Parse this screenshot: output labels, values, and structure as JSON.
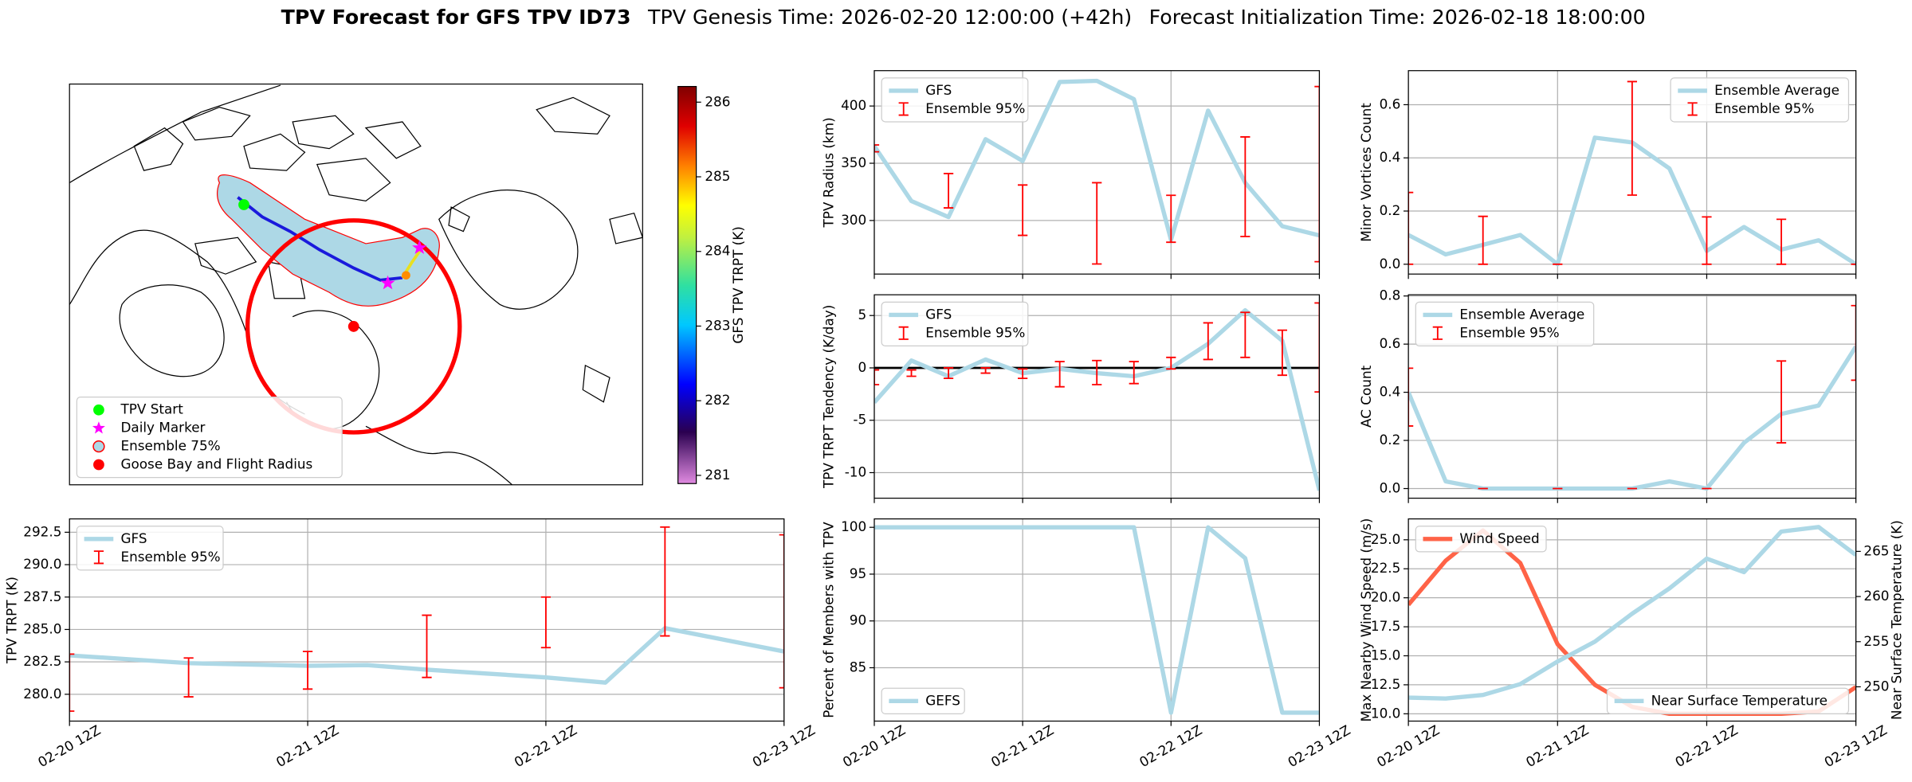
{
  "title": {
    "main": "TPV Forecast for GFS TPV ID73",
    "genesis": "TPV Genesis Time: 2026-02-20 12:00:00 (+42h)",
    "init": "Forecast Initialization Time: 2026-02-18 18:00:00"
  },
  "chart_data": [
    {
      "type": "map",
      "legend": "lower left",
      "series": [
        {
          "name": "TPV Start",
          "color": "#00ff00",
          "marker": "o"
        },
        {
          "name": "Daily Marker",
          "color": "#ff00ff",
          "marker": "*"
        },
        {
          "name": "Ensemble 75%",
          "color": "#add8e6",
          "edgecolor": "#ff0000",
          "marker": "o"
        },
        {
          "name": "Goose Bay and Flight Radius",
          "color": "#ff0000",
          "marker": "o"
        }
      ],
      "colorbar": {
        "label": "GFS TPV TRPT (K)",
        "lim": [
          280.89,
          286.21
        ],
        "ticks": [
          281,
          282,
          283,
          284,
          285,
          286
        ]
      }
    },
    {
      "type": "line",
      "ylabel": "TPV Radius (km)",
      "ylim": [
        253.2,
        430.9
      ],
      "yticks": [
        300,
        350,
        400
      ],
      "grid": true,
      "legend": "upper left",
      "series": [
        {
          "name": "GFS",
          "color": "#add8e6",
          "values": [
            365,
            317,
            303,
            371,
            352,
            421,
            422,
            406,
            283,
            396,
            333,
            295,
            287
          ]
        }
      ],
      "error_bars": {
        "name": "Ensemble 95%",
        "color": "#ff0000",
        "low": [
          360,
          null,
          311,
          null,
          287,
          null,
          262,
          null,
          281,
          null,
          286,
          null,
          264
        ],
        "high": [
          366,
          null,
          341,
          null,
          331,
          null,
          333,
          null,
          322,
          null,
          373,
          null,
          417
        ]
      }
    },
    {
      "type": "line",
      "ylabel": "Minor Vortices Count",
      "ylim": [
        -0.037,
        0.728
      ],
      "yticks": [
        {
          "value": 0,
          "label": "0.0"
        },
        0.2,
        0.4,
        0.6
      ],
      "grid": true,
      "legend": "upper right",
      "series": [
        {
          "name": "Ensemble Average",
          "color": "#add8e6",
          "values": [
            0.11,
            0.037,
            0.073,
            0.11,
            0,
            0.476,
            0.458,
            0.36,
            0.05,
            0.14,
            0.055,
            0.09,
            0
          ]
        }
      ],
      "error_bars": {
        "name": "Ensemble 95%",
        "color": "#ff0000",
        "low": [
          0,
          null,
          0,
          null,
          0,
          null,
          0.26,
          null,
          0,
          null,
          0,
          null,
          0
        ],
        "high": [
          0.27,
          null,
          0.18,
          null,
          0,
          null,
          0.687,
          null,
          0.178,
          null,
          0.169,
          null,
          0
        ]
      }
    },
    {
      "type": "line",
      "ylabel": "TPV TRPT Tendency (K/day)",
      "ylim": [
        -12.44,
        6.98
      ],
      "yticks": [
        -10,
        -5,
        0,
        5
      ],
      "grid": true,
      "legend": "upper left",
      "reference_line": 0,
      "series": [
        {
          "name": "GFS",
          "color": "#add8e6",
          "values": [
            -3.3,
            0.7,
            -0.8,
            0.8,
            -0.5,
            -0.1,
            -0.5,
            -0.8,
            0,
            2.3,
            5.5,
            2.6,
            -11.7
          ]
        }
      ],
      "error_bars": {
        "name": "Ensemble 95%",
        "color": "#ff0000",
        "low": [
          -1.6,
          -0.8,
          -1.0,
          -0.5,
          -1.0,
          -1.8,
          -1.6,
          -1.5,
          -0.1,
          0.8,
          1.0,
          -0.7,
          -2.3
        ],
        "high": [
          -0.2,
          -0.2,
          0.0,
          0.0,
          -0.1,
          0.6,
          0.7,
          0.6,
          1.0,
          4.3,
          5.3,
          3.6,
          6.2
        ]
      }
    },
    {
      "type": "line",
      "ylabel": "AC Count",
      "ylim": [
        -0.04,
        0.805
      ],
      "yticks": [
        {
          "value": 0,
          "label": "0.0"
        },
        0.2,
        0.4,
        0.6,
        0.8
      ],
      "grid": true,
      "legend": "upper left",
      "series": [
        {
          "name": "Ensemble Average",
          "color": "#add8e6",
          "values": [
            0.4,
            0.03,
            0,
            0,
            0,
            0,
            0,
            0.03,
            0,
            0.19,
            0.31,
            0.345,
            0.59
          ]
        }
      ],
      "error_bars": {
        "name": "Ensemble 95%",
        "color": "#ff0000",
        "low": [
          0.26,
          null,
          0,
          null,
          0,
          null,
          0,
          null,
          0,
          null,
          0.19,
          null,
          0.45
        ],
        "high": [
          0.5,
          null,
          0,
          null,
          0,
          null,
          0,
          null,
          0,
          null,
          0.53,
          null,
          0.76
        ]
      }
    },
    {
      "type": "line",
      "ylabel": "TPV TRPT (K)",
      "ylim": [
        277.93,
        293.53
      ],
      "yticks": [
        {
          "value": 280,
          "label": "280.0"
        },
        282.5,
        {
          "value": 285,
          "label": "285.0"
        },
        287.5,
        {
          "value": 290,
          "label": "290.0"
        },
        292.5
      ],
      "grid": true,
      "legend": "upper left",
      "categories": [
        "02-20 12Z",
        null,
        null,
        null,
        "02-21 12Z",
        null,
        null,
        null,
        "02-22 12Z",
        null,
        null,
        null,
        "02-23 12Z"
      ],
      "series": [
        {
          "name": "GFS",
          "color": "#add8e6",
          "values": [
            283.0,
            282.7,
            282.4,
            282.3,
            282.2,
            282.25,
            281.9,
            281.6,
            281.3,
            280.9,
            285.1,
            284.2,
            283.3
          ]
        }
      ],
      "error_bars": {
        "name": "Ensemble 95%",
        "color": "#ff0000",
        "low": [
          278.7,
          null,
          279.8,
          null,
          280.4,
          null,
          281.3,
          null,
          283.6,
          null,
          284.5,
          null,
          280.5
        ],
        "high": [
          283.1,
          null,
          282.8,
          null,
          283.3,
          null,
          286.1,
          null,
          287.5,
          null,
          292.9,
          null,
          292.3
        ]
      }
    },
    {
      "type": "line",
      "ylabel": "Percent of Members with TPV",
      "ylim": [
        79.3,
        100.9
      ],
      "yticks": [
        85,
        90,
        95,
        100
      ],
      "grid": true,
      "legend": "lower left",
      "categories": [
        "02-20 12Z",
        null,
        null,
        null,
        "02-21 12Z",
        null,
        null,
        null,
        "02-22 12Z",
        null,
        null,
        null,
        "02-23 12Z"
      ],
      "series": [
        {
          "name": "GEFS",
          "color": "#add8e6",
          "values": [
            100,
            100,
            100,
            100,
            100,
            100,
            100,
            100,
            80.2,
            100,
            96.7,
            80.2,
            80.2
          ]
        }
      ]
    },
    {
      "type": "line",
      "ylabel": "Max Nearby Wind Speed (m/s)",
      "ylabel_color": "#ff6347",
      "y2label": "Near Surface Temperature (K)",
      "y2label_color": "#4169e1",
      "ylim": [
        9.37,
        26.8
      ],
      "yticks": [
        {
          "value": 10,
          "label": "10.0"
        },
        12.5,
        {
          "value": 15,
          "label": "15.0"
        },
        17.5,
        {
          "value": 20,
          "label": "20.0"
        },
        22.5,
        {
          "value": 25,
          "label": "25.0"
        }
      ],
      "y2lim": [
        246.2,
        268.6
      ],
      "y2ticks": [
        250,
        255,
        260,
        265
      ],
      "grid": true,
      "categories": [
        "02-20 12Z",
        null,
        null,
        null,
        "02-21 12Z",
        null,
        null,
        null,
        "02-22 12Z",
        null,
        null,
        null,
        "02-23 12Z"
      ],
      "series": [
        {
          "name": "Wind Speed",
          "color": "#ff6347",
          "legend": "upper left",
          "values": [
            19.4,
            23.2,
            25.8,
            23.0,
            16.0,
            12.5,
            10.6,
            10.0,
            10.0,
            10.0,
            10.0,
            10.2,
            12.3
          ]
        },
        {
          "name": "Near Surface Temperature",
          "color": "#add8e6",
          "axis": "y2",
          "legend": "lower right",
          "values": [
            248.8,
            248.7,
            249.1,
            250.3,
            252.8,
            255.0,
            258.1,
            260.9,
            264.2,
            262.7,
            267.2,
            267.7,
            264.6
          ]
        }
      ]
    }
  ]
}
